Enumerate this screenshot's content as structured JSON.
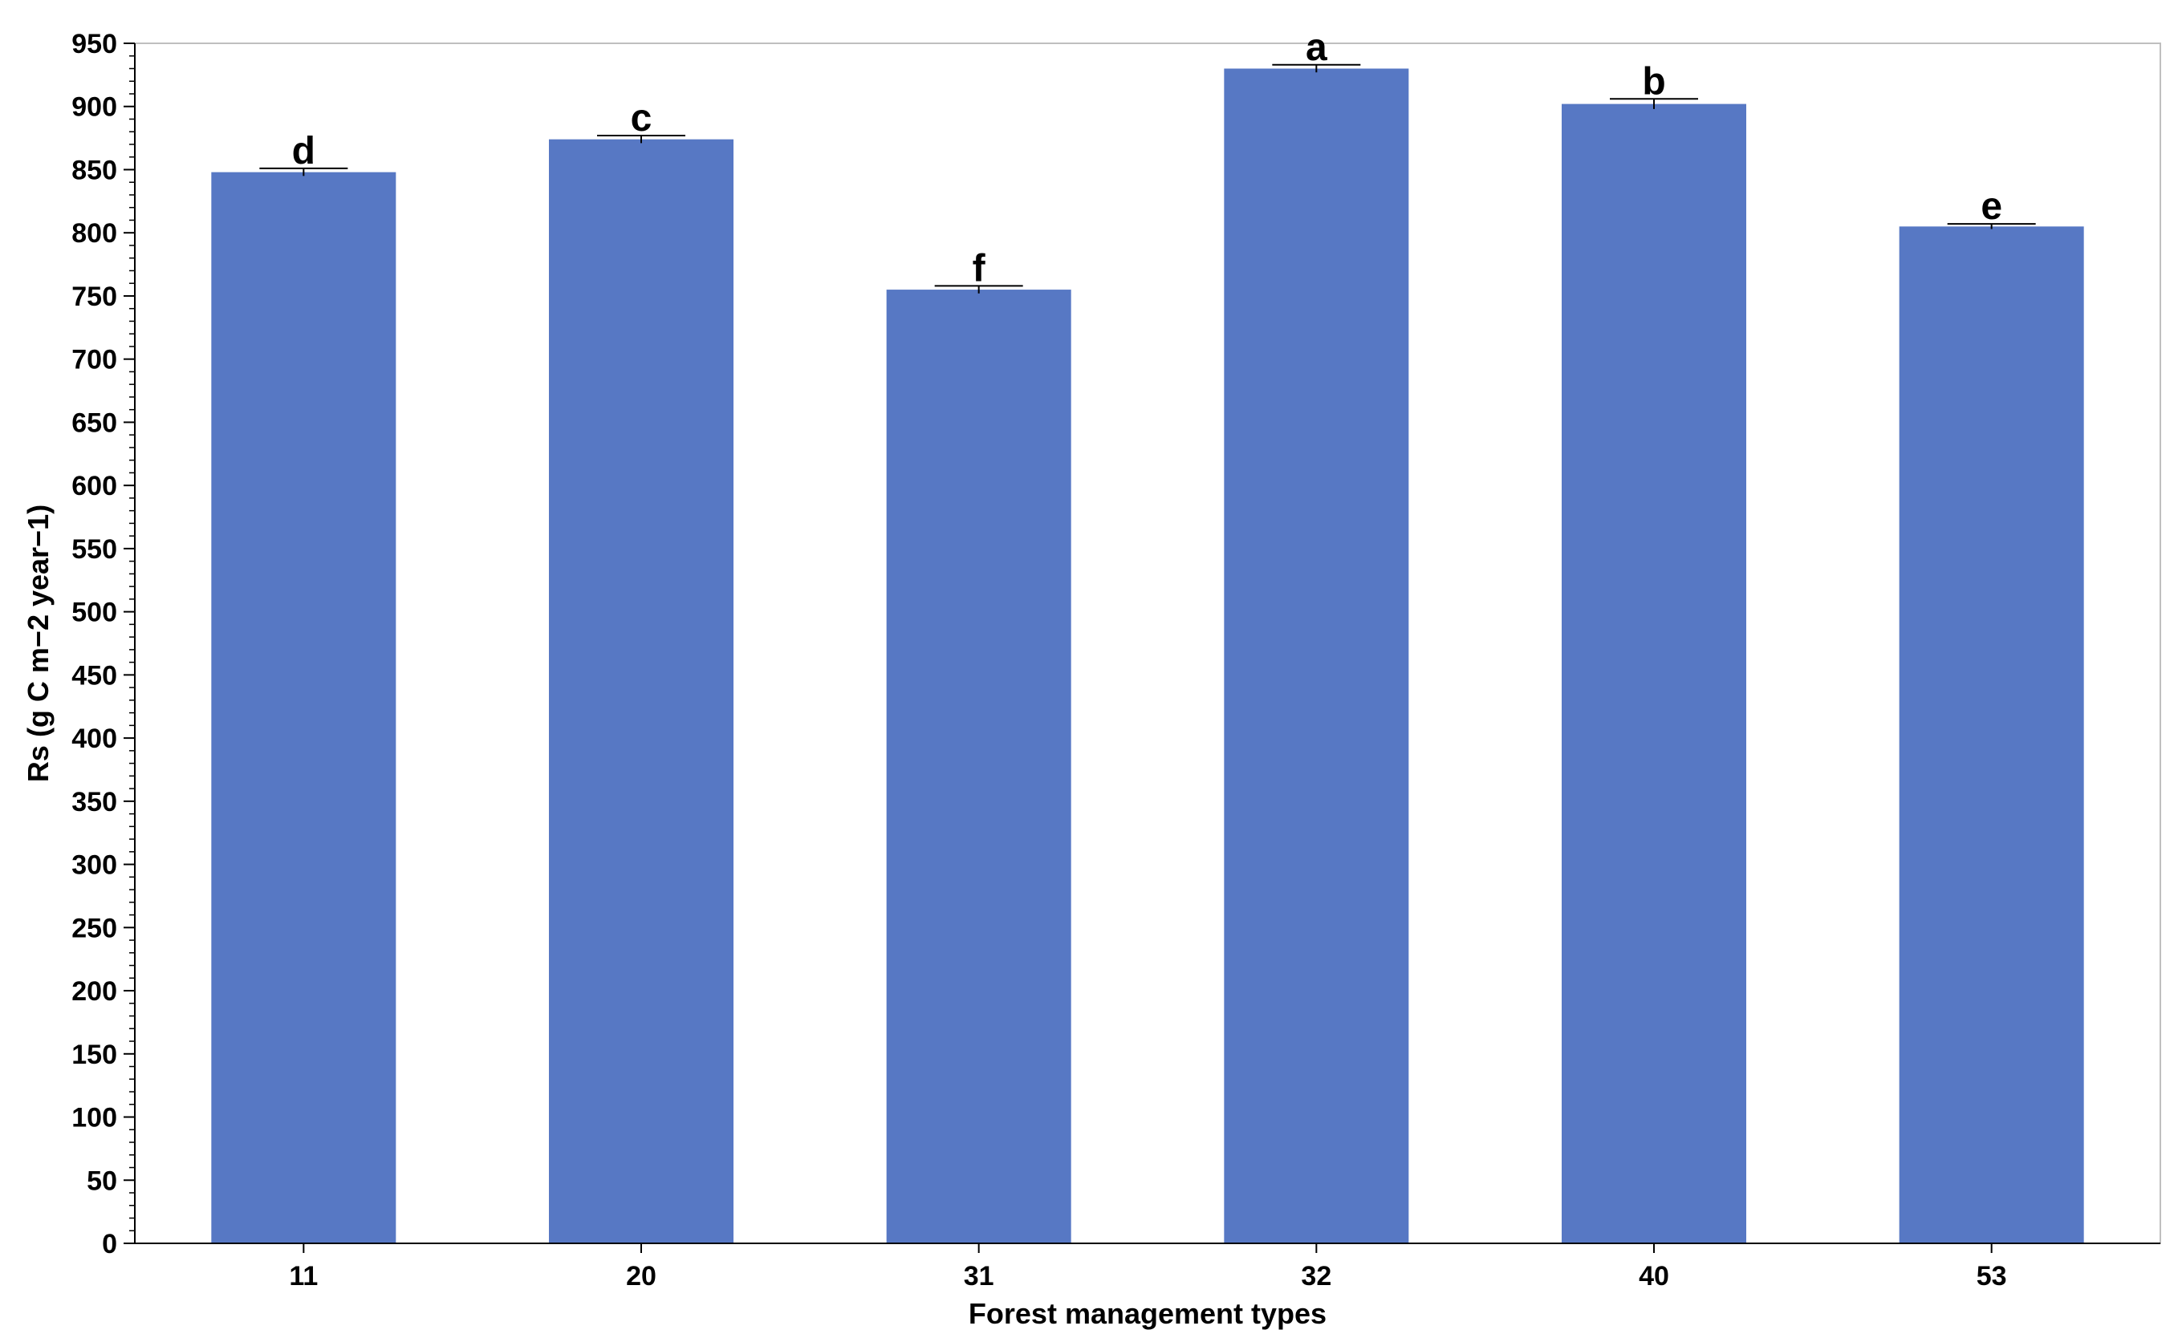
{
  "chart_data": {
    "type": "bar",
    "categories": [
      "11",
      "20",
      "31",
      "32",
      "40",
      "53"
    ],
    "values": [
      848,
      874,
      755,
      930,
      902,
      805
    ],
    "error": [
      3,
      3,
      3,
      3,
      4,
      2
    ],
    "letters": [
      "d",
      "c",
      "f",
      "a",
      "b",
      "e"
    ],
    "xlabel": "Forest management types",
    "ylabel": "Rs (g C m−2 year−1)",
    "ylim": [
      0,
      950
    ],
    "yticks": [
      0,
      50,
      100,
      150,
      200,
      250,
      300,
      350,
      400,
      450,
      500,
      550,
      600,
      650,
      700,
      750,
      800,
      850,
      900,
      950
    ],
    "grid": false,
    "colors": {
      "bar": "#5778C4",
      "axis": "#000000",
      "frame": "#bfbfbf"
    }
  }
}
